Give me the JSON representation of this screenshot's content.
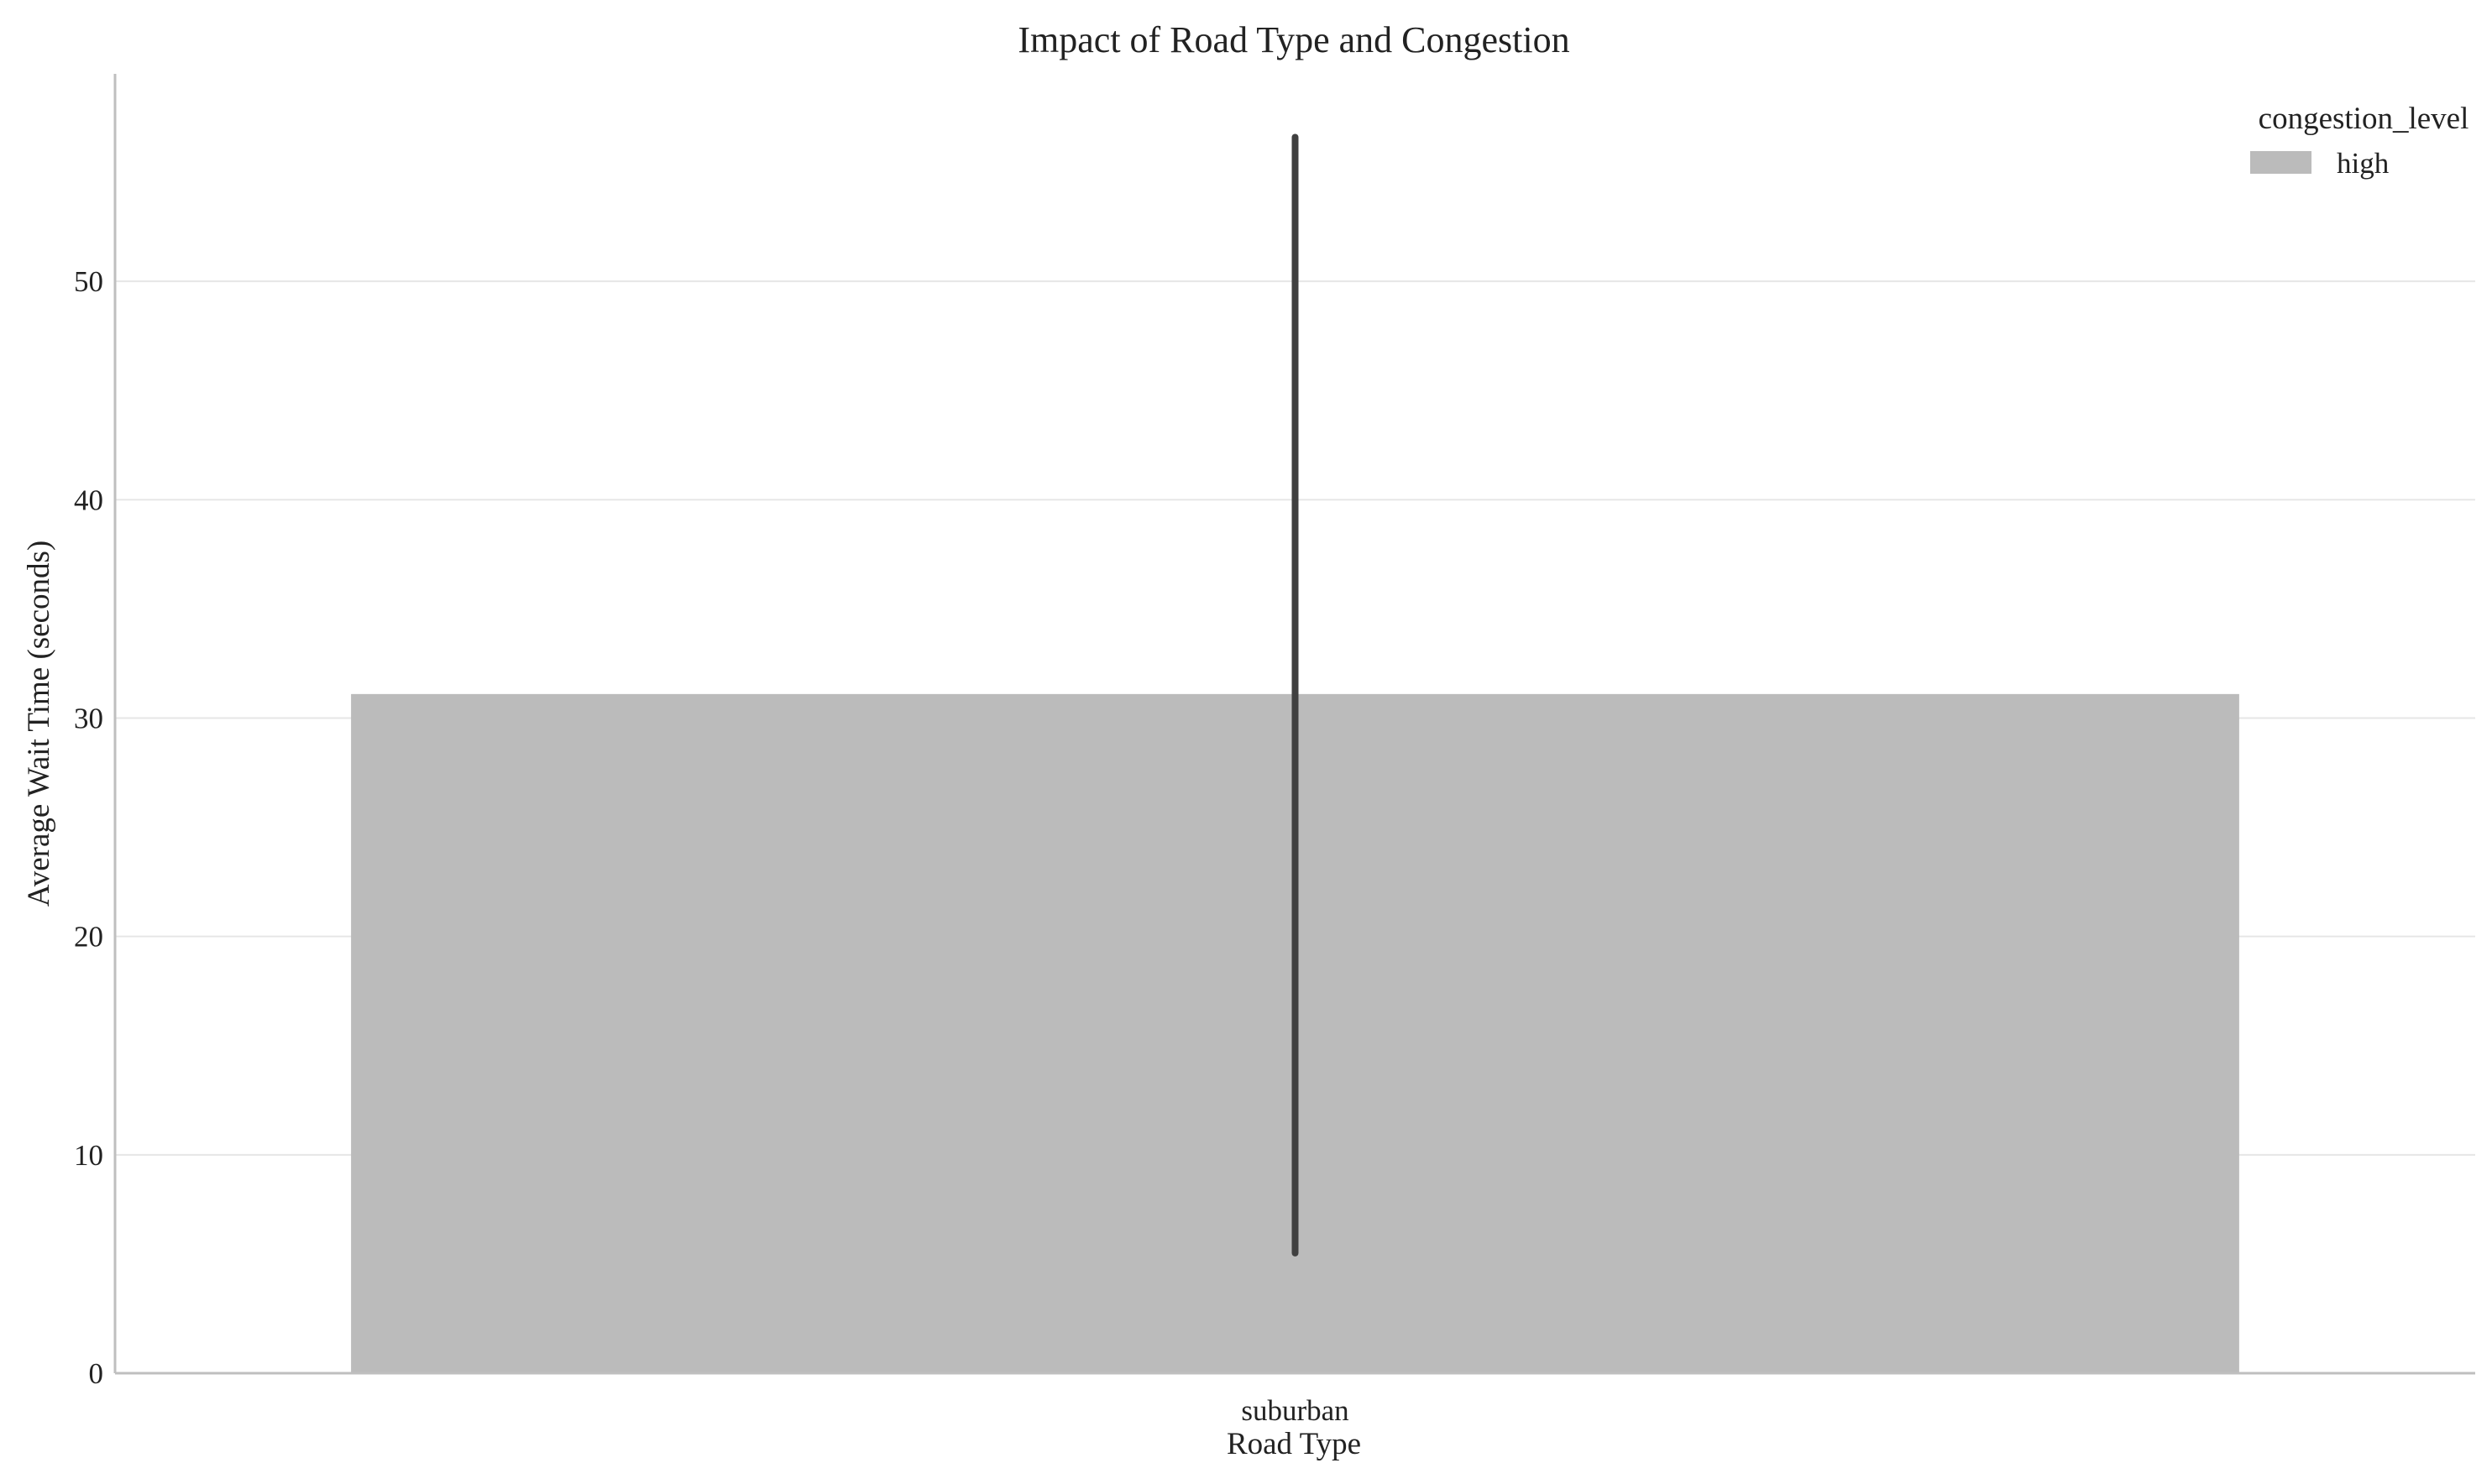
{
  "chart_data": {
    "type": "bar",
    "title": "Impact of Road Type and Congestion",
    "xlabel": "Road Type",
    "ylabel": "Average Wait Time (seconds)",
    "categories": [
      "suburban"
    ],
    "series": [
      {
        "name": "high",
        "values": [
          31.1
        ],
        "error_low": [
          5.5
        ],
        "error_high": [
          56.6
        ],
        "color": "#bbbbbb"
      }
    ],
    "ylim": [
      0,
      59.5
    ],
    "yticks": [
      0,
      10,
      20,
      30,
      40,
      50
    ],
    "grid": true,
    "legend": {
      "title": "congestion_level",
      "position": "top-right",
      "entries": [
        "high"
      ]
    },
    "colors": {
      "bar": "#bbbbbb",
      "error_bar": "#404040",
      "grid": "#e6e6e6",
      "axis": "#bfbfbf"
    }
  }
}
